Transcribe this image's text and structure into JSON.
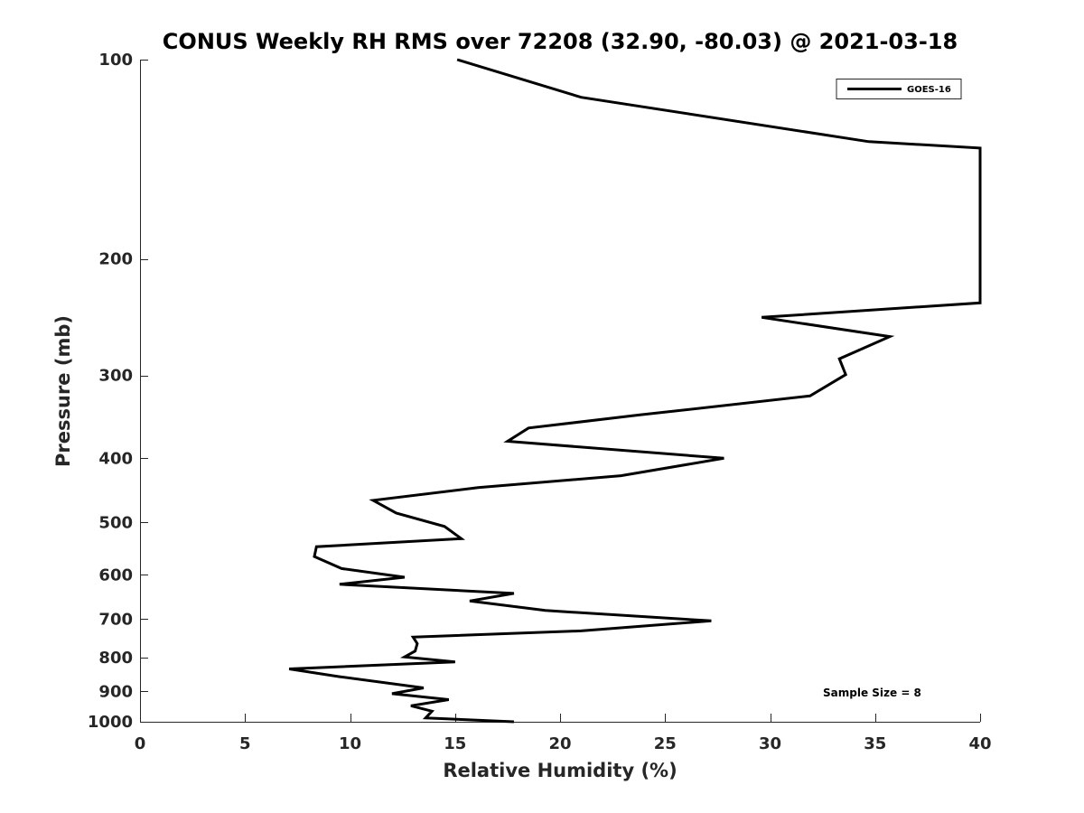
{
  "chart_data": {
    "type": "line",
    "title": "CONUS Weekly RH RMS over 72208 (32.90, -80.03) @ 2021-03-18",
    "xlabel": "Relative Humidity (%)",
    "ylabel": "Pressure (mb)",
    "xlim": [
      0,
      40
    ],
    "ylim": [
      100,
      1000
    ],
    "y_scale": "log",
    "y_reversed": true,
    "xticks": [
      0,
      5,
      10,
      15,
      20,
      25,
      30,
      35,
      40
    ],
    "yticks": [
      100,
      200,
      300,
      400,
      500,
      600,
      700,
      800,
      900,
      1000
    ],
    "grid": false,
    "legend_position": "top-right",
    "annotation": "Sample Size = 8",
    "series": [
      {
        "name": "GOES-16",
        "color": "#000000",
        "points": [
          [
            17.8,
            1000
          ],
          [
            13.6,
            987
          ],
          [
            13.9,
            964
          ],
          [
            12.9,
            946
          ],
          [
            14.7,
            926
          ],
          [
            12.0,
            907
          ],
          [
            13.5,
            889
          ],
          [
            9.5,
            855
          ],
          [
            7.1,
            832
          ],
          [
            15.0,
            812
          ],
          [
            12.6,
            798
          ],
          [
            13.1,
            782
          ],
          [
            13.2,
            762
          ],
          [
            13.0,
            745
          ],
          [
            21.0,
            729
          ],
          [
            27.2,
            704
          ],
          [
            19.3,
            679
          ],
          [
            15.7,
            657
          ],
          [
            17.8,
            640
          ],
          [
            9.5,
            620
          ],
          [
            12.6,
            605
          ],
          [
            9.6,
            587
          ],
          [
            8.3,
            563
          ],
          [
            8.4,
            544
          ],
          [
            15.3,
            529
          ],
          [
            14.5,
            507
          ],
          [
            12.2,
            484
          ],
          [
            11.1,
            463
          ],
          [
            16.1,
            443
          ],
          [
            22.9,
            425
          ],
          [
            27.8,
            400
          ],
          [
            17.5,
            377
          ],
          [
            18.5,
            360
          ],
          [
            23.8,
            344
          ],
          [
            31.9,
            322
          ],
          [
            33.6,
            299
          ],
          [
            33.3,
            283
          ],
          [
            35.7,
            262
          ],
          [
            29.6,
            245
          ],
          [
            40.0,
            233
          ],
          [
            40.0,
            136
          ],
          [
            34.7,
            133
          ],
          [
            21.0,
            114
          ],
          [
            15.1,
            100
          ]
        ]
      }
    ]
  }
}
